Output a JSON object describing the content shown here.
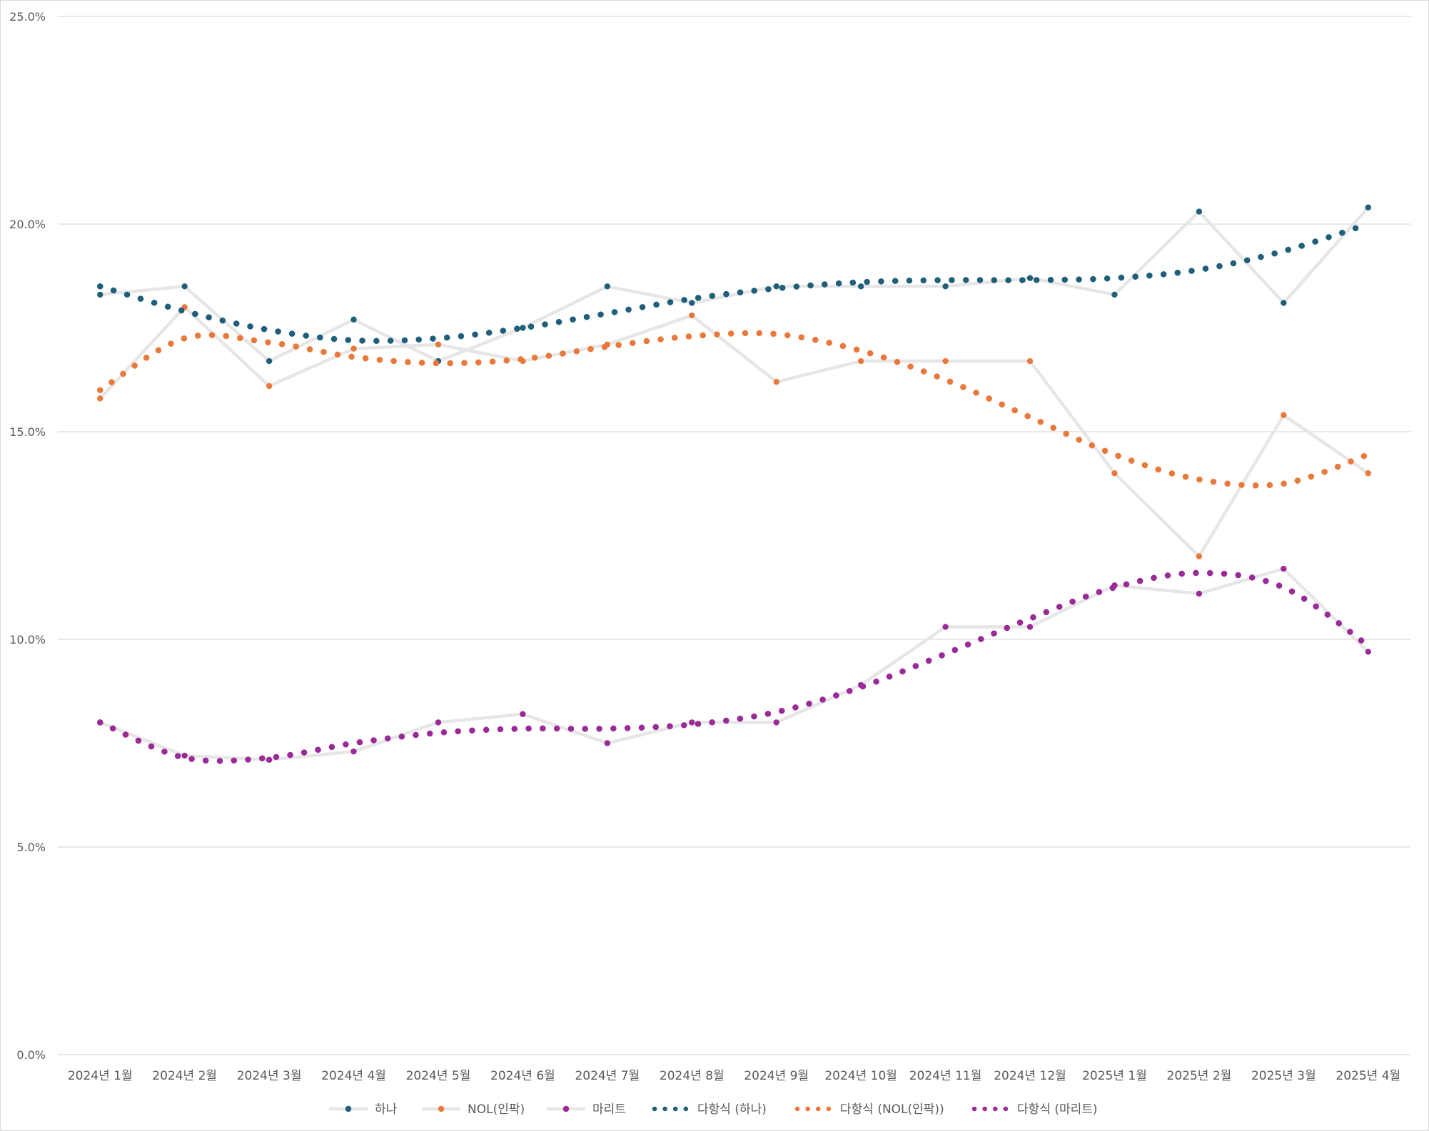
{
  "chart_data": {
    "type": "line",
    "x": [
      "2024년 1월",
      "2024년 2월",
      "2024년 3월",
      "2024년 4월",
      "2024년 5월",
      "2024년 6월",
      "2024년 7월",
      "2024년 8월",
      "2024년 9월",
      "2024년 10월",
      "2024년 11월",
      "2024년 12월",
      "2025년 1월",
      "2025년 2월",
      "2025년 3월",
      "2025년 4월"
    ],
    "yticks": [
      "0.0%",
      "5.0%",
      "10.0%",
      "15.0%",
      "20.0%",
      "25.0%"
    ],
    "ylim": [
      0,
      25
    ],
    "grid": true,
    "legend_position": "bottom",
    "series": [
      {
        "name": "하나",
        "color": "#1f5f7a",
        "values": [
          18.3,
          18.5,
          16.7,
          17.7,
          16.7,
          17.5,
          18.5,
          18.1,
          18.5,
          18.5,
          18.5,
          18.7,
          18.3,
          20.3,
          18.1,
          20.4
        ]
      },
      {
        "name": "NOL(인팍)",
        "color": "#e8793a",
        "values": [
          15.8,
          18.0,
          16.1,
          17.0,
          17.1,
          16.7,
          17.1,
          17.8,
          16.2,
          16.7,
          16.7,
          16.7,
          14.0,
          12.0,
          15.4,
          14.0
        ]
      },
      {
        "name": "마리트",
        "color": "#9a2a98",
        "values": [
          8.0,
          7.2,
          7.1,
          7.3,
          8.0,
          8.2,
          7.5,
          8.0,
          8.0,
          8.9,
          10.3,
          10.3,
          11.3,
          11.1,
          11.7,
          9.7
        ]
      }
    ],
    "trendlines": [
      {
        "name": "다항식 (하나)",
        "series": "하나",
        "color": "#1f5f7a",
        "values": [
          18.5,
          17.9,
          17.45,
          17.2,
          17.25,
          17.5,
          17.85,
          18.2,
          18.45,
          18.6,
          18.65,
          18.65,
          18.7,
          18.9,
          19.35,
          20.0
        ]
      },
      {
        "name": "다항식 (NOL(인팍))",
        "series": "NOL(인팍)",
        "color": "#e8793a",
        "values": [
          16.0,
          17.25,
          17.15,
          16.8,
          16.65,
          16.75,
          17.05,
          17.3,
          17.35,
          16.95,
          16.25,
          15.35,
          14.45,
          13.85,
          13.75,
          14.45
        ]
      },
      {
        "name": "다항식 (마리트)",
        "series": "마리트",
        "color": "#9a2a98",
        "values": [
          8.0,
          7.15,
          7.15,
          7.5,
          7.75,
          7.85,
          7.85,
          7.95,
          8.25,
          8.85,
          9.65,
          10.5,
          11.25,
          11.6,
          11.25,
          9.85
        ]
      }
    ]
  }
}
